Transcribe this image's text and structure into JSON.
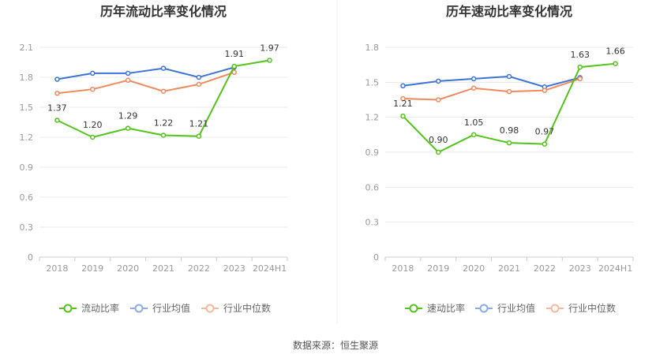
{
  "source_text": "数据来源：恒生聚源",
  "legend_icon": "circle-line-marker",
  "chart_data": [
    {
      "type": "line",
      "title": "历年流动比率变化情况",
      "xlabel": "",
      "ylabel": "",
      "categories": [
        "2018",
        "2019",
        "2020",
        "2021",
        "2022",
        "2023",
        "2024H1"
      ],
      "y_ticks": [
        "0",
        "0.3",
        "0.6",
        "0.9",
        "1.2",
        "1.5",
        "1.8",
        "2.1"
      ],
      "ylim": [
        0,
        2.1
      ],
      "grid": true,
      "legend_position": "bottom",
      "series": [
        {
          "name": "流动比率",
          "color": "#52c41a",
          "labeled": true,
          "values": [
            1.37,
            1.2,
            1.29,
            1.22,
            1.21,
            1.91,
            1.97
          ],
          "labels": [
            "1.37",
            "1.20",
            "1.29",
            "1.22",
            "1.21",
            "1.91",
            "1.97"
          ]
        },
        {
          "name": "行业均值",
          "color": "#3b73d6",
          "labeled": false,
          "values": [
            1.78,
            1.84,
            1.84,
            1.89,
            1.8,
            1.9,
            null
          ]
        },
        {
          "name": "行业中位数",
          "color": "#f08a5d",
          "labeled": false,
          "values": [
            1.64,
            1.68,
            1.77,
            1.66,
            1.73,
            1.85,
            null
          ]
        }
      ]
    },
    {
      "type": "line",
      "title": "历年速动比率变化情况",
      "xlabel": "",
      "ylabel": "",
      "categories": [
        "2018",
        "2019",
        "2020",
        "2021",
        "2022",
        "2023",
        "2024H1"
      ],
      "y_ticks": [
        "0",
        "0.3",
        "0.6",
        "0.9",
        "1.2",
        "1.5",
        "1.8"
      ],
      "ylim": [
        0,
        1.8
      ],
      "grid": true,
      "legend_position": "bottom",
      "series": [
        {
          "name": "速动比率",
          "color": "#52c41a",
          "labeled": true,
          "values": [
            1.21,
            0.9,
            1.05,
            0.98,
            0.97,
            1.63,
            1.66
          ],
          "labels": [
            "1.21",
            "0.90",
            "1.05",
            "0.98",
            "0.97",
            "1.63",
            "1.66"
          ]
        },
        {
          "name": "行业均值",
          "color": "#3b73d6",
          "labeled": false,
          "values": [
            1.47,
            1.51,
            1.53,
            1.55,
            1.46,
            1.54,
            null
          ]
        },
        {
          "name": "行业中位数",
          "color": "#f08a5d",
          "labeled": false,
          "values": [
            1.36,
            1.35,
            1.45,
            1.42,
            1.43,
            1.53,
            null
          ]
        }
      ]
    }
  ]
}
